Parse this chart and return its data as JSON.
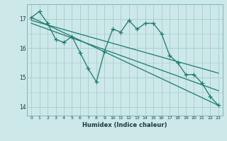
{
  "xlabel": "Humidex (Indice chaleur)",
  "ylabel": "",
  "bg_color": "#cce8e8",
  "line_color": "#1a7a6e",
  "grid_color": "#aacccc",
  "xlim": [
    -0.5,
    23.5
  ],
  "ylim": [
    13.7,
    17.5
  ],
  "yticks": [
    14,
    15,
    16,
    17
  ],
  "xticks": [
    0,
    1,
    2,
    3,
    4,
    5,
    6,
    7,
    8,
    9,
    10,
    11,
    12,
    13,
    14,
    15,
    16,
    17,
    18,
    19,
    20,
    21,
    22,
    23
  ],
  "series1_x": [
    0,
    1,
    2,
    3,
    4,
    5,
    6,
    7,
    8,
    9,
    10,
    11,
    12,
    13,
    14,
    15,
    16,
    17,
    18,
    19,
    20,
    21,
    22,
    23
  ],
  "series1_y": [
    17.05,
    17.25,
    16.85,
    16.3,
    16.2,
    16.4,
    15.85,
    15.3,
    14.85,
    15.9,
    16.65,
    16.55,
    16.95,
    16.65,
    16.85,
    16.85,
    16.5,
    15.75,
    15.5,
    15.1,
    15.1,
    14.8,
    14.35,
    14.05
  ],
  "trend1_x": [
    0,
    23
  ],
  "trend1_y": [
    17.05,
    14.05
  ],
  "trend2_x": [
    0,
    23
  ],
  "trend2_y": [
    16.85,
    14.55
  ],
  "trend3_x": [
    0,
    23
  ],
  "trend3_y": [
    16.95,
    15.15
  ]
}
